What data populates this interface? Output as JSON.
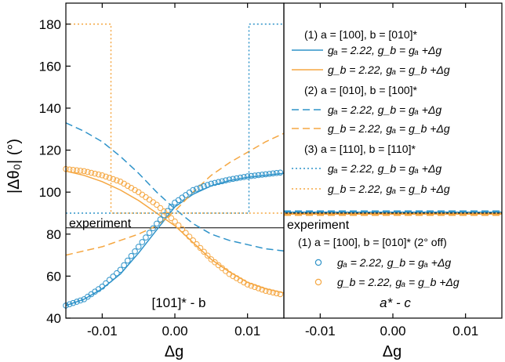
{
  "colors": {
    "blue": "#2f93c9",
    "orange": "#f5a742",
    "black": "#000000"
  },
  "labels": {
    "ylabel": "|Δθ₀| (°)",
    "xlabel_left": "Δg",
    "xlabel_right": "Δg",
    "left_panel_tag": "[101]* - b",
    "right_panel_tag": "a* - c",
    "experiment_left": "experiment",
    "experiment_right": "experiment"
  },
  "legend_top": {
    "groups": [
      {
        "heading": "(1) a = [100], b = [010]*",
        "style": "solid"
      },
      {
        "heading": "(2) a = [010], b = [100]*",
        "style": "dashed"
      },
      {
        "heading": "(3) a = [110], b = [110]*",
        "style": "dotted"
      }
    ],
    "entry_blue": "gₐ = 2.22, g_b = gₐ +Δg",
    "entry_orange": "g_b = 2.22, gₐ = g_b +Δg"
  },
  "legend_bottom": {
    "heading": "(1) a = [100], b = [010]* (2° off)",
    "entry_blue": "gₐ = 2.22, g_b = gₐ +Δg",
    "entry_orange": "g_b = 2.22, gₐ = g_b +Δg"
  },
  "chart_data": [
    {
      "type": "line",
      "panel": "left",
      "xlabel": "Δg",
      "ylabel": "|Δθ₀| (°)",
      "xlim": [
        -0.015,
        0.015
      ],
      "ylim": [
        40,
        190
      ],
      "xticks": [
        -0.01,
        0.0,
        0.01
      ],
      "xtick_labels": [
        "-0.01",
        "0.00",
        "0.01"
      ],
      "yticks": [
        40,
        60,
        80,
        100,
        120,
        140,
        160,
        180
      ],
      "experiment_y": 83,
      "series": [
        {
          "color": "blue",
          "style": "solid",
          "x": [
            -0.015,
            -0.0125,
            -0.01,
            -0.0075,
            -0.005,
            -0.0025,
            0,
            0.0025,
            0.005,
            0.0075,
            0.01,
            0.0125,
            0.015
          ],
          "y": [
            46,
            49,
            54,
            61,
            71,
            82,
            93,
            99,
            103,
            105.5,
            107,
            108,
            109
          ]
        },
        {
          "color": "orange",
          "style": "solid",
          "x": [
            -0.015,
            -0.0125,
            -0.01,
            -0.0075,
            -0.005,
            -0.0025,
            0,
            0.0025,
            0.005,
            0.0075,
            0.01,
            0.0125,
            0.015
          ],
          "y": [
            110,
            108,
            105,
            101,
            96,
            90,
            84,
            76,
            68,
            62,
            57,
            54,
            52
          ]
        },
        {
          "color": "blue",
          "style": "dashed",
          "x": [
            -0.015,
            -0.0125,
            -0.01,
            -0.0075,
            -0.005,
            -0.0025,
            0,
            0.0025,
            0.005,
            0.0075,
            0.01,
            0.0125,
            0.015
          ],
          "y": [
            133,
            129,
            124,
            117,
            109,
            100,
            92,
            85,
            80,
            77,
            75,
            73,
            72
          ]
        },
        {
          "color": "orange",
          "style": "dashed",
          "x": [
            -0.015,
            -0.0125,
            -0.01,
            -0.0075,
            -0.005,
            -0.0025,
            0,
            0.0025,
            0.005,
            0.0075,
            0.01,
            0.0125,
            0.015
          ],
          "y": [
            70,
            72,
            74,
            77,
            80,
            84,
            91,
            100,
            108,
            114,
            119,
            124,
            128
          ]
        },
        {
          "color": "blue",
          "style": "dotted",
          "x": [
            -0.015,
            0.0102,
            0.0102,
            0.015
          ],
          "y": [
            90,
            90,
            180,
            180
          ]
        },
        {
          "color": "orange",
          "style": "dotted",
          "x": [
            -0.015,
            -0.0088,
            -0.0088,
            0.015
          ],
          "y": [
            180,
            180,
            90,
            90
          ]
        },
        {
          "color": "blue",
          "style": "circles",
          "x": [
            -0.015,
            -0.0125,
            -0.01,
            -0.0075,
            -0.005,
            -0.0025,
            0,
            0.0025,
            0.005,
            0.0075,
            0.01,
            0.0125,
            0.015
          ],
          "y": [
            46,
            49,
            55,
            63,
            74,
            85,
            95,
            101,
            104,
            106,
            107.5,
            108.5,
            109.5
          ]
        },
        {
          "color": "orange",
          "style": "circles",
          "x": [
            -0.015,
            -0.0125,
            -0.01,
            -0.0075,
            -0.005,
            -0.0025,
            0,
            0.0025,
            0.005,
            0.0075,
            0.01,
            0.0125,
            0.015
          ],
          "y": [
            111,
            110,
            108,
            105,
            100,
            94,
            86,
            77,
            68,
            61,
            56,
            53,
            51
          ]
        }
      ]
    },
    {
      "type": "line",
      "panel": "right",
      "xlabel": "Δg",
      "xlim": [
        -0.015,
        0.015
      ],
      "ylim": [
        40,
        190
      ],
      "xticks": [
        -0.01,
        0.0,
        0.01
      ],
      "xtick_labels": [
        "-0.01",
        "0.00",
        "0.01"
      ],
      "experiment_y": 90,
      "series": [
        {
          "color": "blue",
          "style": "solid",
          "x": [
            -0.015,
            0.015
          ],
          "y": [
            90.5,
            90.5
          ]
        },
        {
          "color": "orange",
          "style": "solid",
          "x": [
            -0.015,
            0.015
          ],
          "y": [
            89.5,
            89.5
          ]
        },
        {
          "color": "blue",
          "style": "dashed",
          "x": [
            -0.015,
            0.015
          ],
          "y": [
            91,
            91
          ]
        },
        {
          "color": "orange",
          "style": "dashed",
          "x": [
            -0.015,
            0.015
          ],
          "y": [
            89,
            89
          ]
        },
        {
          "color": "blue",
          "style": "dotted",
          "x": [
            -0.015,
            0.015
          ],
          "y": [
            90,
            90
          ]
        },
        {
          "color": "orange",
          "style": "dotted",
          "x": [
            -0.015,
            0.015
          ],
          "y": [
            90,
            90
          ]
        }
      ]
    }
  ]
}
